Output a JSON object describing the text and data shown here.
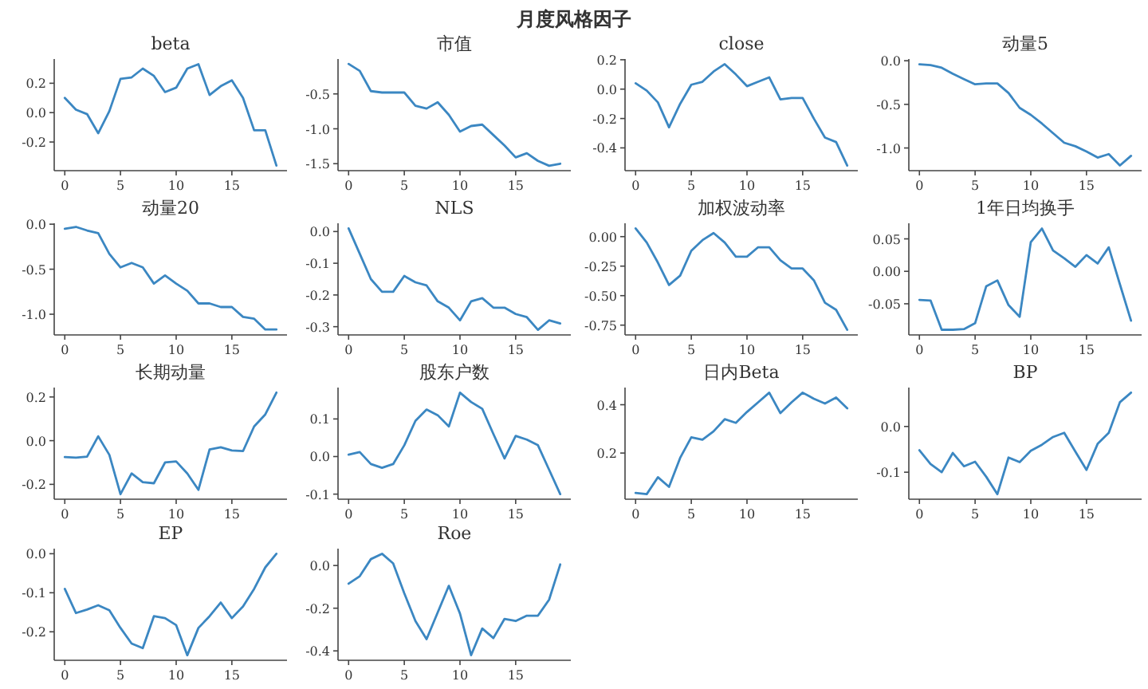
{
  "chart_data": [
    {
      "type": "line",
      "title": "beta",
      "annotations": [
        "月度风格因子"
      ],
      "color": "#3b87c2",
      "x": [
        0,
        1,
        2,
        3,
        4,
        5,
        6,
        7,
        8,
        9,
        10,
        11,
        12,
        13,
        14,
        15,
        16,
        17,
        18,
        19
      ],
      "values": [
        0.1,
        0.02,
        -0.01,
        -0.14,
        0.01,
        0.23,
        0.24,
        0.3,
        0.25,
        0.14,
        0.17,
        0.3,
        0.33,
        0.12,
        0.18,
        0.22,
        0.1,
        -0.12,
        -0.12,
        -0.36
      ],
      "xlim": [
        -0.95,
        19.95
      ],
      "xticks": [
        0,
        5,
        10,
        15
      ],
      "ylim": [
        -0.395,
        0.365
      ],
      "yticks": [
        -0.2,
        {
          "value": 0,
          "label": "0.0"
        },
        0.2
      ]
    },
    {
      "type": "line",
      "title": "市值",
      "color": "#3b87c2",
      "x": [
        0,
        1,
        2,
        3,
        4,
        5,
        6,
        7,
        8,
        9,
        10,
        11,
        12,
        13,
        14,
        15,
        16,
        17,
        18,
        19
      ],
      "values": [
        -0.07,
        -0.17,
        -0.46,
        -0.48,
        -0.48,
        -0.48,
        -0.67,
        -0.71,
        -0.62,
        -0.8,
        -1.04,
        -0.96,
        -0.94,
        -1.09,
        -1.24,
        -1.41,
        -1.35,
        -1.46,
        -1.53,
        -1.5
      ],
      "xlim": [
        -0.95,
        19.95
      ],
      "xticks": [
        0,
        5,
        10,
        15
      ],
      "ylim": [
        -1.6,
        0.0
      ],
      "yticks": [
        -0.5,
        {
          "value": -1,
          "label": "-1.0"
        },
        -1.5
      ]
    },
    {
      "type": "line",
      "title": "close",
      "color": "#3b87c2",
      "x": [
        0,
        1,
        2,
        3,
        4,
        5,
        6,
        7,
        8,
        9,
        10,
        11,
        12,
        13,
        14,
        15,
        16,
        17,
        18,
        19
      ],
      "values": [
        0.04,
        -0.01,
        -0.09,
        -0.26,
        -0.1,
        0.03,
        0.05,
        0.12,
        0.17,
        0.1,
        0.02,
        0.05,
        0.08,
        -0.07,
        -0.06,
        -0.06,
        -0.2,
        -0.33,
        -0.36,
        -0.52
      ],
      "xlim": [
        -0.95,
        19.95
      ],
      "xticks": [
        0,
        5,
        10,
        15
      ],
      "ylim": [
        -0.555,
        0.205
      ],
      "yticks": [
        -0.4,
        -0.2,
        {
          "value": 0,
          "label": "0.0"
        },
        0.2
      ]
    },
    {
      "type": "line",
      "title": "动量5",
      "color": "#3b87c2",
      "x": [
        0,
        1,
        2,
        3,
        4,
        5,
        6,
        7,
        8,
        9,
        10,
        11,
        12,
        13,
        14,
        15,
        16,
        17,
        18,
        19
      ],
      "values": [
        -0.04,
        -0.05,
        -0.08,
        -0.15,
        -0.21,
        -0.27,
        -0.26,
        -0.26,
        -0.37,
        -0.54,
        -0.62,
        -0.72,
        -0.83,
        -0.94,
        -0.98,
        -1.04,
        -1.11,
        -1.07,
        -1.2,
        -1.09
      ],
      "xlim": [
        -0.95,
        19.95
      ],
      "xticks": [
        0,
        5,
        10,
        15
      ],
      "ylim": [
        -1.26,
        0.02
      ],
      "yticks": [
        {
          "value": -1,
          "label": "-1.0"
        },
        -0.5,
        {
          "value": 0,
          "label": "0.0"
        }
      ]
    },
    {
      "type": "line",
      "title": "动量20",
      "color": "#3b87c2",
      "x": [
        0,
        1,
        2,
        3,
        4,
        5,
        6,
        7,
        8,
        9,
        10,
        11,
        12,
        13,
        14,
        15,
        16,
        17,
        18,
        19
      ],
      "values": [
        -0.05,
        -0.03,
        -0.07,
        -0.1,
        -0.33,
        -0.48,
        -0.43,
        -0.48,
        -0.66,
        -0.57,
        -0.66,
        -0.74,
        -0.88,
        -0.88,
        -0.92,
        -0.92,
        -1.03,
        -1.05,
        -1.17,
        -1.17
      ],
      "xlim": [
        -0.95,
        19.95
      ],
      "xticks": [
        0,
        5,
        10,
        15
      ],
      "ylim": [
        -1.23,
        0.01
      ],
      "yticks": [
        {
          "value": -1,
          "label": "-1.0"
        },
        -0.5,
        {
          "value": 0,
          "label": "0.0"
        }
      ]
    },
    {
      "type": "line",
      "title": "NLS",
      "color": "#3b87c2",
      "x": [
        0,
        1,
        2,
        3,
        4,
        5,
        6,
        7,
        8,
        9,
        10,
        11,
        12,
        13,
        14,
        15,
        16,
        17,
        18,
        19
      ],
      "values": [
        0.01,
        -0.07,
        -0.15,
        -0.19,
        -0.19,
        -0.14,
        -0.16,
        -0.17,
        -0.22,
        -0.24,
        -0.28,
        -0.22,
        -0.21,
        -0.24,
        -0.24,
        -0.26,
        -0.27,
        -0.31,
        -0.28,
        -0.29
      ],
      "xlim": [
        -0.95,
        19.95
      ],
      "xticks": [
        0,
        5,
        10,
        15
      ],
      "ylim": [
        -0.326,
        0.026
      ],
      "yticks": [
        -0.3,
        -0.2,
        -0.1,
        {
          "value": 0,
          "label": "0.0"
        }
      ]
    },
    {
      "type": "line",
      "title": "加权波动率",
      "color": "#3b87c2",
      "x": [
        0,
        1,
        2,
        3,
        4,
        5,
        6,
        7,
        8,
        9,
        10,
        11,
        12,
        13,
        14,
        15,
        16,
        17,
        18,
        19
      ],
      "values": [
        0.07,
        -0.05,
        -0.22,
        -0.41,
        -0.33,
        -0.12,
        -0.03,
        0.03,
        -0.05,
        -0.17,
        -0.17,
        -0.09,
        -0.09,
        -0.2,
        -0.27,
        -0.27,
        -0.37,
        -0.56,
        -0.62,
        -0.79
      ],
      "xlim": [
        -0.95,
        19.95
      ],
      "xticks": [
        0,
        5,
        10,
        15
      ],
      "ylim": [
        -0.833,
        0.113
      ],
      "yticks": [
        -0.75,
        {
          "value": -0.5,
          "label": "-0.50"
        },
        -0.25,
        {
          "value": 0,
          "label": "0.00"
        }
      ]
    },
    {
      "type": "line",
      "title": "1年日均换手",
      "color": "#3b87c2",
      "x": [
        0,
        1,
        2,
        3,
        4,
        5,
        6,
        7,
        8,
        9,
        10,
        11,
        12,
        13,
        14,
        15,
        16,
        17,
        18,
        19
      ],
      "values": [
        -0.044,
        -0.045,
        -0.09,
        -0.09,
        -0.089,
        -0.08,
        -0.023,
        -0.014,
        -0.052,
        -0.07,
        0.045,
        0.066,
        0.032,
        0.02,
        0.007,
        0.025,
        0.012,
        0.037,
        -0.02,
        -0.076
      ],
      "xlim": [
        -0.95,
        19.95
      ],
      "xticks": [
        0,
        5,
        10,
        15
      ],
      "ylim": [
        -0.098,
        0.074
      ],
      "yticks": [
        -0.05,
        {
          "value": 0,
          "label": "0.00"
        },
        0.05
      ]
    },
    {
      "type": "line",
      "title": "长期动量",
      "color": "#3b87c2",
      "x": [
        0,
        1,
        2,
        3,
        4,
        5,
        6,
        7,
        8,
        9,
        10,
        11,
        12,
        13,
        14,
        15,
        16,
        17,
        18,
        19
      ],
      "values": [
        -0.075,
        -0.078,
        -0.073,
        0.02,
        -0.065,
        -0.245,
        -0.15,
        -0.19,
        -0.195,
        -0.1,
        -0.095,
        -0.15,
        -0.225,
        -0.04,
        -0.03,
        -0.045,
        -0.048,
        0.065,
        0.12,
        0.22
      ],
      "xlim": [
        -0.95,
        19.95
      ],
      "xticks": [
        0,
        5,
        10,
        15
      ],
      "ylim": [
        -0.268,
        0.243
      ],
      "yticks": [
        -0.2,
        {
          "value": 0,
          "label": "0.0"
        },
        0.2
      ]
    },
    {
      "type": "line",
      "title": "股东户数",
      "color": "#3b87c2",
      "x": [
        0,
        1,
        2,
        3,
        4,
        5,
        6,
        7,
        8,
        9,
        10,
        11,
        12,
        13,
        14,
        15,
        16,
        17,
        18,
        19
      ],
      "values": [
        0.005,
        0.012,
        -0.02,
        -0.03,
        -0.02,
        0.03,
        0.095,
        0.125,
        0.11,
        0.08,
        0.17,
        0.145,
        0.127,
        0.06,
        -0.005,
        0.055,
        0.045,
        0.03,
        -0.035,
        -0.1
      ],
      "xlim": [
        -0.95,
        19.95
      ],
      "xticks": [
        0,
        5,
        10,
        15
      ],
      "ylim": [
        -0.1135,
        0.1835
      ],
      "yticks": [
        -0.1,
        {
          "value": 0,
          "label": "0.0"
        },
        0.1
      ]
    },
    {
      "type": "line",
      "title": "日内Beta",
      "color": "#3b87c2",
      "x": [
        0,
        1,
        2,
        3,
        4,
        5,
        6,
        7,
        8,
        9,
        10,
        11,
        12,
        13,
        14,
        15,
        16,
        17,
        18,
        19
      ],
      "values": [
        0.035,
        0.03,
        0.1,
        0.06,
        0.18,
        0.265,
        0.255,
        0.29,
        0.34,
        0.325,
        0.37,
        0.41,
        0.45,
        0.365,
        0.41,
        0.45,
        0.425,
        0.405,
        0.43,
        0.385
      ],
      "xlim": [
        -0.95,
        19.95
      ],
      "xticks": [
        0,
        5,
        10,
        15
      ],
      "ylim": [
        0.009,
        0.471
      ],
      "yticks": [
        0.2,
        0.4
      ]
    },
    {
      "type": "line",
      "title": "BP",
      "color": "#3b87c2",
      "x": [
        0,
        1,
        2,
        3,
        4,
        5,
        6,
        7,
        8,
        9,
        10,
        11,
        12,
        13,
        14,
        15,
        16,
        17,
        18,
        19
      ],
      "values": [
        -0.052,
        -0.082,
        -0.1,
        -0.058,
        -0.087,
        -0.077,
        -0.11,
        -0.148,
        -0.068,
        -0.078,
        -0.053,
        -0.04,
        -0.023,
        -0.014,
        -0.055,
        -0.095,
        -0.038,
        -0.014,
        0.053,
        0.074
      ],
      "xlim": [
        -0.95,
        19.95
      ],
      "xticks": [
        0,
        5,
        10,
        15
      ],
      "ylim": [
        -0.159,
        0.085
      ],
      "yticks": [
        -0.1,
        {
          "value": 0,
          "label": "0.0"
        }
      ]
    },
    {
      "type": "line",
      "title": "EP",
      "color": "#3b87c2",
      "x": [
        0,
        1,
        2,
        3,
        4,
        5,
        6,
        7,
        8,
        9,
        10,
        11,
        12,
        13,
        14,
        15,
        16,
        17,
        18,
        19
      ],
      "values": [
        -0.09,
        -0.152,
        -0.143,
        -0.132,
        -0.145,
        -0.19,
        -0.23,
        -0.242,
        -0.16,
        -0.165,
        -0.183,
        -0.26,
        -0.19,
        -0.16,
        -0.125,
        -0.165,
        -0.135,
        -0.09,
        -0.035,
        0.0
      ],
      "xlim": [
        -0.95,
        19.95
      ],
      "xticks": [
        0,
        5,
        10,
        15
      ],
      "ylim": [
        -0.273,
        0.013
      ],
      "yticks": [
        -0.2,
        -0.1,
        {
          "value": 0,
          "label": "0.0"
        }
      ]
    },
    {
      "type": "line",
      "title": "Roe",
      "color": "#3b87c2",
      "x": [
        0,
        1,
        2,
        3,
        4,
        5,
        6,
        7,
        8,
        9,
        10,
        11,
        12,
        13,
        14,
        15,
        16,
        17,
        18,
        19
      ],
      "values": [
        -0.085,
        -0.05,
        0.03,
        0.055,
        0.01,
        -0.13,
        -0.26,
        -0.345,
        -0.22,
        -0.095,
        -0.225,
        -0.42,
        -0.295,
        -0.34,
        -0.25,
        -0.26,
        -0.235,
        -0.235,
        -0.16,
        0.005
      ],
      "xlim": [
        -0.95,
        19.95
      ],
      "xticks": [
        0,
        5,
        10,
        15
      ],
      "ylim": [
        -0.444,
        0.079
      ],
      "yticks": [
        -0.4,
        -0.2,
        {
          "value": 0,
          "label": "0.0"
        }
      ]
    }
  ]
}
